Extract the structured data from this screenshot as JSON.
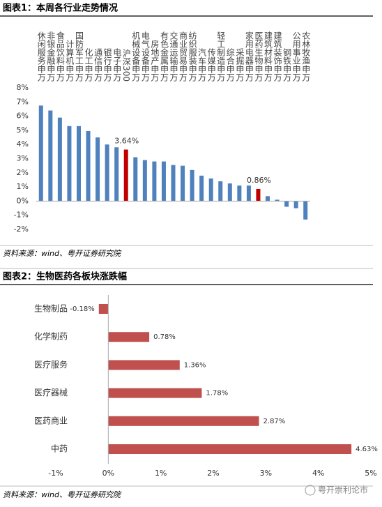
{
  "chart_data": [
    {
      "type": "bar",
      "title": "图表1：本周各行业走势情况",
      "source": "资料来源：wind、粤开证券研究院",
      "categories": [
        "休闲服务申万",
        "非银金融申万",
        "食品饮料申万",
        "计算机申万",
        "国防军工申万",
        "化工申万",
        "通信申万",
        "银行申万",
        "电子申万",
        "沪深300",
        "机械设备申万",
        "电气设备申万",
        "房地产申万",
        "有色金属申万",
        "交通运输申万",
        "商业贸易申万",
        "纺织服装申万",
        "汽车申万",
        "传媒申万",
        "轻工制造申万",
        "综合申万",
        "采掘申万",
        "家用电器申万",
        "医药生物申万",
        "建筑材料申万",
        "建筑装饰申万",
        "钢铁申万",
        "公用事业申万",
        "农林牧渔申万"
      ],
      "values": [
        6.75,
        6.4,
        5.9,
        5.3,
        5.3,
        4.95,
        4.5,
        4.0,
        3.8,
        3.64,
        3.1,
        2.9,
        2.8,
        2.8,
        2.55,
        2.5,
        2.2,
        1.8,
        1.6,
        1.4,
        1.25,
        1.1,
        1.1,
        0.86,
        0.35,
        0.1,
        -0.4,
        -0.5,
        -1.3
      ],
      "value_labels": [
        null,
        null,
        null,
        null,
        null,
        null,
        null,
        null,
        null,
        "3.64%",
        null,
        null,
        null,
        null,
        null,
        null,
        null,
        null,
        null,
        null,
        null,
        null,
        null,
        "0.86%",
        null,
        null,
        null,
        null,
        null
      ],
      "colors": [
        "#4f81bd",
        "#4f81bd",
        "#4f81bd",
        "#4f81bd",
        "#4f81bd",
        "#4f81bd",
        "#4f81bd",
        "#4f81bd",
        "#4f81bd",
        "#c00000",
        "#4f81bd",
        "#4f81bd",
        "#4f81bd",
        "#4f81bd",
        "#4f81bd",
        "#4f81bd",
        "#4f81bd",
        "#4f81bd",
        "#4f81bd",
        "#4f81bd",
        "#4f81bd",
        "#4f81bd",
        "#4f81bd",
        "#c00000",
        "#4f81bd",
        "#4f81bd",
        "#4f81bd",
        "#4f81bd",
        "#4f81bd"
      ],
      "ylim": [
        -2,
        8
      ],
      "yticks": [
        {
          "value": 8,
          "label": "8%"
        },
        {
          "value": 7,
          "label": "7%"
        },
        {
          "value": 6,
          "label": "6%"
        },
        {
          "value": 5,
          "label": "5%"
        },
        {
          "value": 4,
          "label": "4%"
        },
        {
          "value": 3,
          "label": "3%"
        },
        {
          "value": 2,
          "label": "2%"
        },
        {
          "value": 1,
          "label": "1%"
        },
        {
          "value": 0,
          "label": "0%"
        },
        {
          "value": -1,
          "label": "-1%"
        },
        {
          "value": -2,
          "label": "-2%"
        }
      ],
      "grid": false
    },
    {
      "type": "barh",
      "title": "图表2：生物医药各板块涨跌幅",
      "source": "资料来源：wind、粤开证券研究院",
      "categories": [
        "生物制品",
        "化学制药",
        "医疗服务",
        "医疗器械",
        "医药商业",
        "中药"
      ],
      "values": [
        -0.18,
        0.78,
        1.36,
        1.78,
        2.87,
        4.63
      ],
      "value_labels": [
        "-0.18%",
        "0.78%",
        "1.36%",
        "1.78%",
        "2.87%",
        "4.63%"
      ],
      "color": "#c0504d",
      "xlim": [
        -1,
        5
      ],
      "xticks": [
        {
          "value": -1,
          "label": "-1%"
        },
        {
          "value": 0,
          "label": "0%"
        },
        {
          "value": 1,
          "label": "1%"
        },
        {
          "value": 2,
          "label": "2%"
        },
        {
          "value": 3,
          "label": "3%"
        },
        {
          "value": 4,
          "label": "4%"
        },
        {
          "value": 5,
          "label": "5%"
        }
      ],
      "grid": false
    }
  ],
  "watermark": "粤开崇利论市"
}
